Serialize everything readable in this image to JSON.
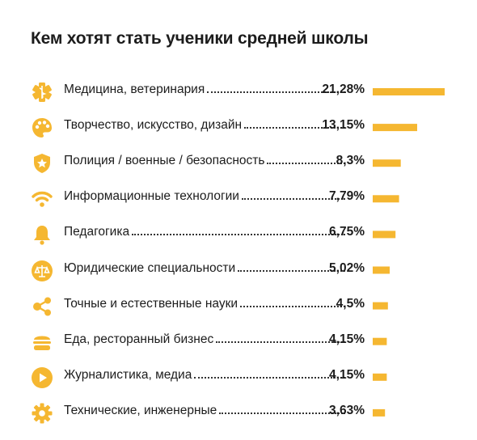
{
  "title": "Кем хотят стать ученики средней школы",
  "colors": {
    "accent": "#F5B731",
    "text": "#1c1c1c"
  },
  "chart_data": {
    "type": "bar",
    "orientation": "horizontal",
    "title": "Кем хотят стать ученики средней школы",
    "categories": [
      "Медицина, ветеринария",
      "Творчество, искусство, дизайн",
      "Полиция / военные / безопасность",
      "Информационные технологии",
      "Педагогика",
      "Юридические специальности",
      "Точные и естественные науки",
      "Еда, ресторанный бизнес",
      "Журналистика, медиа",
      "Технические, инженерные"
    ],
    "values": [
      21.28,
      13.15,
      8.3,
      7.79,
      6.75,
      5.02,
      4.5,
      4.15,
      4.15,
      3.63
    ],
    "value_labels": [
      "21,28%",
      "13,15%",
      "8,3%",
      "7,79%",
      "6,75%",
      "5,02%",
      "4,5%",
      "4,15%",
      "4,15%",
      "3,63%"
    ],
    "icons": [
      "medical-icon",
      "palette-icon",
      "shield-star-icon",
      "wifi-icon",
      "bell-icon",
      "scales-icon",
      "molecule-icon",
      "burger-icon",
      "play-icon",
      "gear-icon"
    ],
    "xlabel": "",
    "ylabel": "",
    "grid": false,
    "legend": "none"
  }
}
